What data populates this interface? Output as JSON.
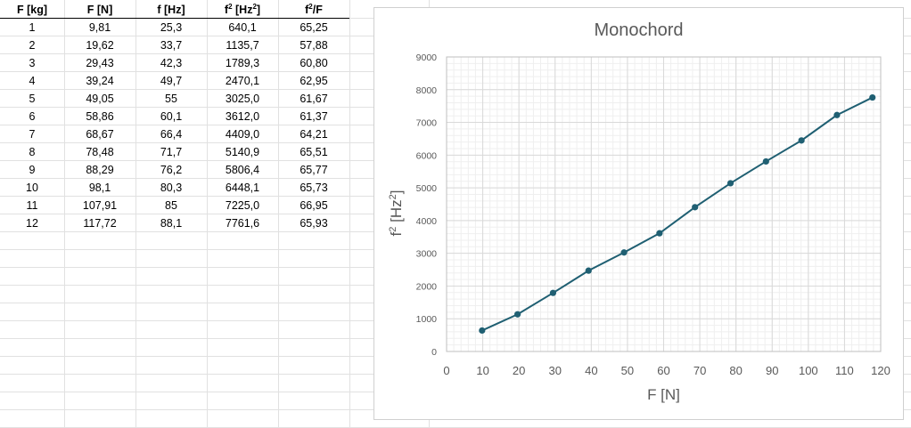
{
  "table": {
    "headers": [
      {
        "pre": "F [kg]",
        "sup": "",
        "post": ""
      },
      {
        "pre": "F [N]",
        "sup": "",
        "post": ""
      },
      {
        "pre": "f [Hz]",
        "sup": "",
        "post": ""
      },
      {
        "pre": "f",
        "sup": "2",
        "post": " [Hz",
        "sup2": "2",
        "post2": "]"
      },
      {
        "pre": "f",
        "sup": "2",
        "post": "/F"
      }
    ],
    "rows": [
      [
        "1",
        "9,81",
        "25,3",
        "640,1",
        "65,25"
      ],
      [
        "2",
        "19,62",
        "33,7",
        "1135,7",
        "57,88"
      ],
      [
        "3",
        "29,43",
        "42,3",
        "1789,3",
        "60,80"
      ],
      [
        "4",
        "39,24",
        "49,7",
        "2470,1",
        "62,95"
      ],
      [
        "5",
        "49,05",
        "55",
        "3025,0",
        "61,67"
      ],
      [
        "6",
        "58,86",
        "60,1",
        "3612,0",
        "61,37"
      ],
      [
        "7",
        "68,67",
        "66,4",
        "4409,0",
        "64,21"
      ],
      [
        "8",
        "78,48",
        "71,7",
        "5140,9",
        "65,51"
      ],
      [
        "9",
        "88,29",
        "76,2",
        "5806,4",
        "65,77"
      ],
      [
        "10",
        "98,1",
        "80,3",
        "6448,1",
        "65,73"
      ],
      [
        "11",
        "107,91",
        "85",
        "7225,0",
        "66,95"
      ],
      [
        "12",
        "117,72",
        "88,1",
        "7761,6",
        "65,93"
      ]
    ]
  },
  "chart_data": {
    "type": "line",
    "title": "Monochord",
    "xlabel": "F [N]",
    "ylabel_base": "f",
    "ylabel_sup": "2",
    "ylabel_unit": " [Hz",
    "ylabel_unit_sup": "2",
    "ylabel_close": "]",
    "xlim": [
      0,
      120
    ],
    "ylim": [
      0,
      9000
    ],
    "xticks": [
      0,
      10,
      20,
      30,
      40,
      50,
      60,
      70,
      80,
      90,
      100,
      110,
      120
    ],
    "yticks": [
      0,
      1000,
      2000,
      3000,
      4000,
      5000,
      6000,
      7000,
      8000,
      9000
    ],
    "grid": true,
    "series": [
      {
        "x": [
          9.81,
          19.62,
          29.43,
          39.24,
          49.05,
          58.86,
          68.67,
          78.48,
          88.29,
          98.1,
          107.91,
          117.72
        ],
        "y": [
          640.1,
          1135.7,
          1789.3,
          2470.1,
          3025.0,
          3612.0,
          4409.0,
          5140.9,
          5806.4,
          6448.1,
          7225.0,
          7761.6
        ]
      }
    ],
    "colors": {
      "line": "#1f5f72",
      "grid_major": "#d9d9d9",
      "grid_minor": "#efefef",
      "text": "#595959"
    }
  }
}
